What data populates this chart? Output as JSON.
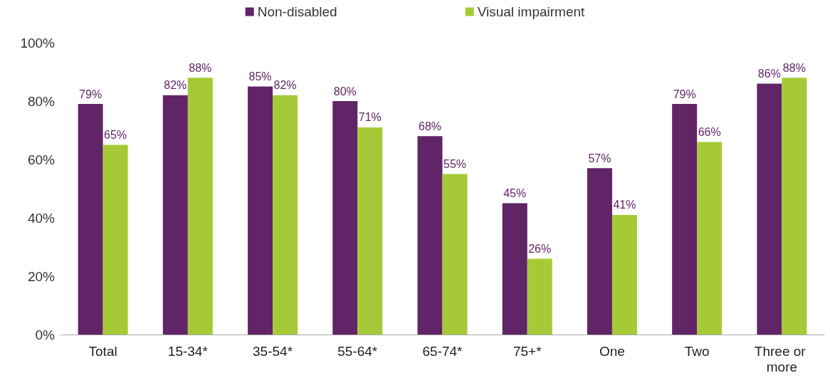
{
  "chart_data": {
    "type": "bar",
    "categories": [
      "Total",
      "15-34*",
      "35-54*",
      "55-64*",
      "65-74*",
      "75+*",
      "One",
      "Two",
      "Three or more"
    ],
    "series": [
      {
        "name": "Non-disabled",
        "color": "#612466",
        "values": [
          79,
          82,
          85,
          80,
          68,
          45,
          57,
          79,
          86
        ],
        "value_labels": [
          "79%",
          "82%",
          "85%",
          "80%",
          "68%",
          "45%",
          "57%",
          "79%",
          "86%"
        ]
      },
      {
        "name": "Visual impairment",
        "color": "#a6ca37",
        "values": [
          65,
          88,
          82,
          71,
          55,
          26,
          41,
          66,
          88
        ],
        "value_labels": [
          "65%",
          "88%",
          "82%",
          "71%",
          "55%",
          "26%",
          "41%",
          "66%",
          "88%"
        ]
      }
    ],
    "ylim": [
      0,
      100
    ],
    "yticks": [
      {
        "value": 0,
        "label": "0%"
      },
      {
        "value": 20,
        "label": "20%"
      },
      {
        "value": 40,
        "label": "40%"
      },
      {
        "value": 60,
        "label": "60%"
      },
      {
        "value": 80,
        "label": "80%"
      },
      {
        "value": 100,
        "label": "100%"
      }
    ],
    "grid": false,
    "legend": "top"
  }
}
